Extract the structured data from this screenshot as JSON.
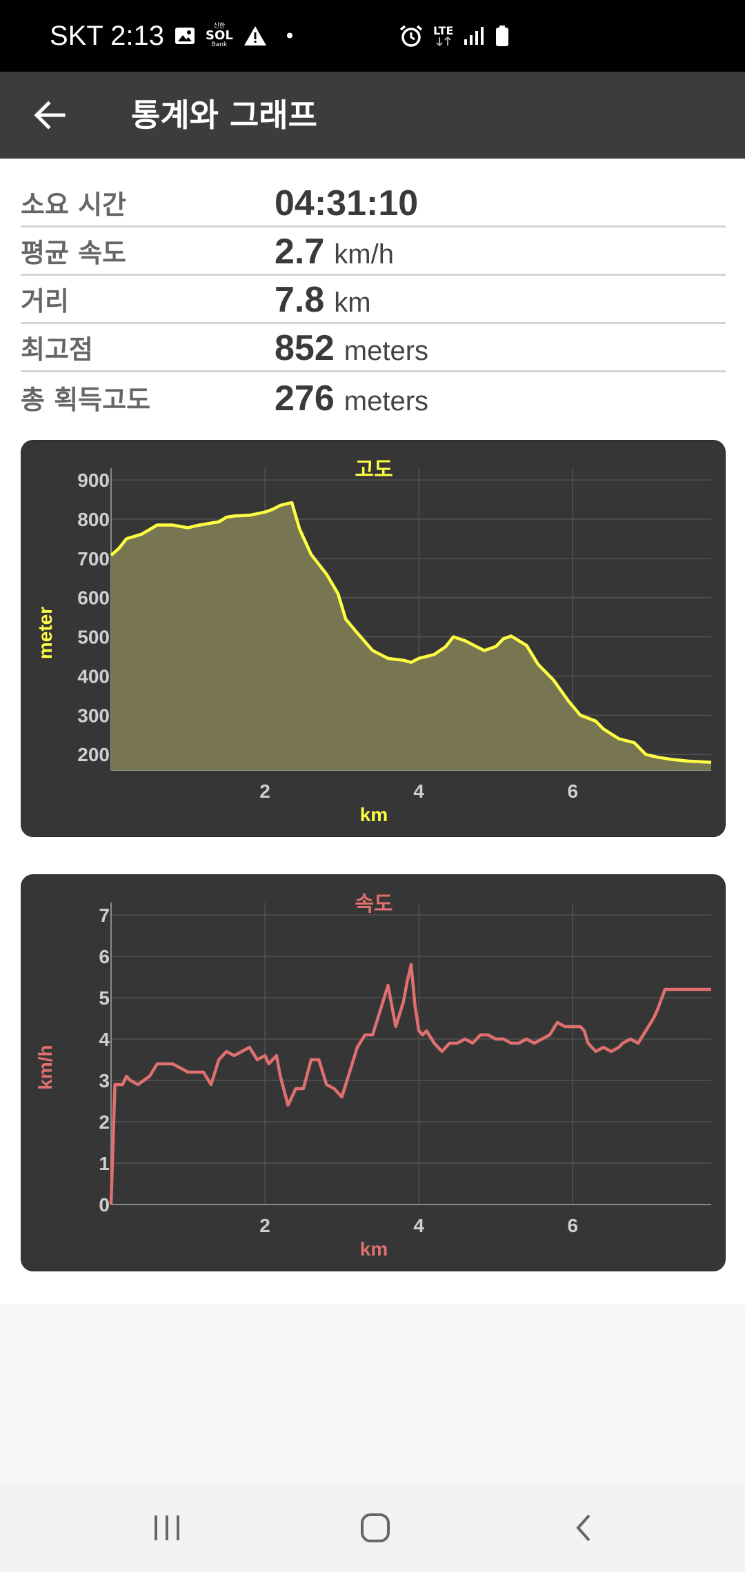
{
  "status_bar": {
    "carrier_time": "SKT 2:13",
    "sol_small": "신한",
    "sol_main": "SOL",
    "sol_bank": "Bank",
    "dot": "•",
    "lte": "LTE",
    "icons": [
      "image-icon",
      "sol-bank-icon",
      "warning-icon",
      "alarm-icon",
      "lte-icon",
      "signal-icon",
      "battery-icon"
    ]
  },
  "app_bar": {
    "title": "통계와 그래프",
    "back_icon": "arrow-left-icon"
  },
  "stats": [
    {
      "label": "소요 시간",
      "value": "04:31:10",
      "unit": ""
    },
    {
      "label": "평균 속도",
      "value": "2.7",
      "unit": "km/h"
    },
    {
      "label": "거리",
      "value": "7.8",
      "unit": "km"
    },
    {
      "label": "최고점",
      "value": "852",
      "unit": "meters"
    },
    {
      "label": "총 획득고도",
      "value": "276",
      "unit": "meters"
    }
  ],
  "colors": {
    "elevation": "#ffff44",
    "speed": "#e07070",
    "card_bg": "#363636",
    "tick": "#cfcfcf"
  },
  "chart_data": [
    {
      "type": "area",
      "title": "고도",
      "xlabel": "km",
      "ylabel": "meter",
      "xlim": [
        0,
        7.8
      ],
      "ylim": [
        160,
        930
      ],
      "xticks": [
        2,
        4,
        6
      ],
      "yticks": [
        200,
        300,
        400,
        500,
        600,
        700,
        800,
        900
      ],
      "grid": true,
      "x": [
        0,
        0.1,
        0.2,
        0.4,
        0.6,
        0.8,
        1.0,
        1.1,
        1.3,
        1.4,
        1.5,
        1.6,
        1.8,
        2.0,
        2.1,
        2.2,
        2.3,
        2.35,
        2.45,
        2.6,
        2.8,
        2.95,
        3.05,
        3.2,
        3.4,
        3.6,
        3.8,
        3.9,
        4.0,
        4.2,
        4.35,
        4.45,
        4.6,
        4.7,
        4.85,
        5.0,
        5.1,
        5.2,
        5.4,
        5.55,
        5.75,
        5.95,
        6.1,
        6.3,
        6.4,
        6.6,
        6.8,
        6.95,
        7.1,
        7.3,
        7.5,
        7.8
      ],
      "values": [
        708,
        725,
        750,
        762,
        785,
        785,
        778,
        783,
        790,
        793,
        805,
        808,
        810,
        818,
        825,
        835,
        840,
        842,
        775,
        710,
        660,
        610,
        545,
        510,
        465,
        445,
        440,
        435,
        445,
        455,
        475,
        500,
        490,
        480,
        465,
        475,
        495,
        502,
        478,
        430,
        390,
        335,
        300,
        285,
        265,
        240,
        230,
        200,
        193,
        187,
        183,
        180
      ]
    },
    {
      "type": "line",
      "title": "속도",
      "xlabel": "km",
      "ylabel": "km/h",
      "xlim": [
        0,
        7.8
      ],
      "ylim": [
        0,
        7.3
      ],
      "xticks": [
        2,
        4,
        6
      ],
      "yticks": [
        0,
        1,
        2,
        3,
        4,
        5,
        6,
        7
      ],
      "grid": true,
      "x": [
        0,
        0.05,
        0.15,
        0.2,
        0.25,
        0.35,
        0.5,
        0.6,
        0.8,
        0.9,
        1.0,
        1.2,
        1.3,
        1.4,
        1.5,
        1.6,
        1.7,
        1.8,
        1.9,
        2.0,
        2.05,
        2.15,
        2.2,
        2.3,
        2.4,
        2.5,
        2.6,
        2.7,
        2.8,
        2.9,
        3.0,
        3.1,
        3.2,
        3.3,
        3.4,
        3.5,
        3.6,
        3.7,
        3.8,
        3.85,
        3.9,
        3.95,
        4.0,
        4.05,
        4.1,
        4.2,
        4.3,
        4.4,
        4.5,
        4.6,
        4.7,
        4.8,
        4.9,
        5.0,
        5.1,
        5.2,
        5.3,
        5.4,
        5.5,
        5.6,
        5.7,
        5.8,
        5.9,
        6.0,
        6.1,
        6.15,
        6.2,
        6.3,
        6.4,
        6.5,
        6.6,
        6.65,
        6.75,
        6.85,
        6.95,
        7.05,
        7.1,
        7.2,
        7.3,
        7.4,
        7.5,
        7.6,
        7.8
      ],
      "values": [
        0.0,
        2.9,
        2.9,
        3.1,
        3.0,
        2.9,
        3.1,
        3.4,
        3.4,
        3.3,
        3.2,
        3.2,
        2.9,
        3.5,
        3.7,
        3.6,
        3.7,
        3.8,
        3.5,
        3.6,
        3.4,
        3.6,
        3.1,
        2.4,
        2.8,
        2.8,
        3.5,
        3.5,
        2.9,
        2.8,
        2.6,
        3.2,
        3.8,
        4.1,
        4.1,
        4.7,
        5.3,
        4.3,
        4.9,
        5.4,
        5.8,
        4.8,
        4.2,
        4.1,
        4.2,
        3.9,
        3.7,
        3.9,
        3.9,
        4.0,
        3.9,
        4.1,
        4.1,
        4.0,
        4.0,
        3.9,
        3.9,
        4.0,
        3.9,
        4.0,
        4.1,
        4.4,
        4.3,
        4.3,
        4.3,
        4.2,
        3.9,
        3.7,
        3.8,
        3.7,
        3.8,
        3.9,
        4.0,
        3.9,
        4.2,
        4.5,
        4.7,
        5.2,
        5.2,
        5.2,
        5.2,
        5.2,
        5.2
      ]
    }
  ]
}
